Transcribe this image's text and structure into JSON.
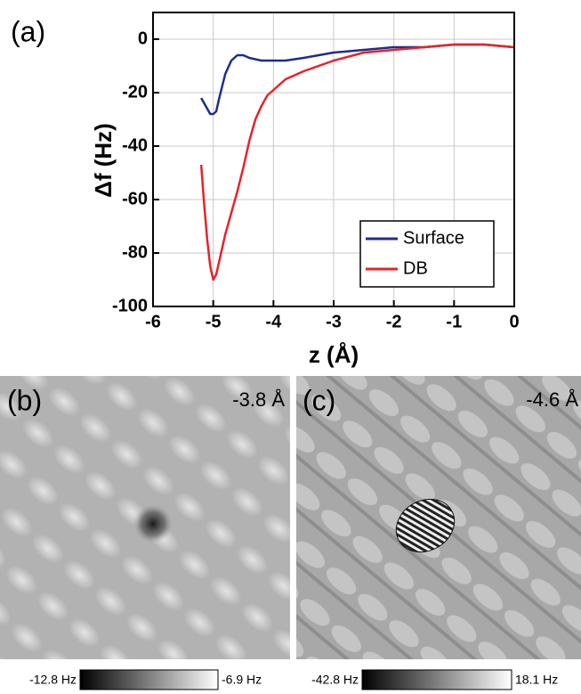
{
  "chart_data": {
    "type": "line",
    "panel_label": "(a)",
    "x_label": "z (Å)",
    "y_label": "Δf (Hz)",
    "xlim": [
      -6,
      0
    ],
    "xticks": [
      -6,
      -5,
      -4,
      -3,
      -2,
      -1,
      0
    ],
    "ylim": [
      -100,
      10
    ],
    "yticks": [
      -100,
      -80,
      -60,
      -40,
      -20,
      0
    ],
    "grid": true,
    "legend": "lower right",
    "series": [
      {
        "name": "Surface",
        "color": "#1f2d8c",
        "x": [
          -5.2,
          -5.15,
          -5.1,
          -5.05,
          -5.0,
          -4.95,
          -4.9,
          -4.8,
          -4.7,
          -4.6,
          -4.5,
          -4.4,
          -4.2,
          -4.0,
          -3.8,
          -3.5,
          -3.0,
          -2.5,
          -2.0,
          -1.5,
          -1.0,
          -0.5,
          0
        ],
        "values": [
          -22,
          -24,
          -26,
          -28,
          -28,
          -27,
          -22,
          -13,
          -8,
          -6,
          -6,
          -7,
          -8,
          -8,
          -8,
          -7,
          -5,
          -4,
          -3,
          -3,
          -2,
          -2,
          -3
        ]
      },
      {
        "name": "DB",
        "color": "#e8222a",
        "x": [
          -5.2,
          -5.15,
          -5.1,
          -5.05,
          -5.0,
          -4.95,
          -4.9,
          -4.8,
          -4.7,
          -4.6,
          -4.5,
          -4.4,
          -4.3,
          -4.2,
          -4.1,
          -4.0,
          -3.9,
          -3.8,
          -3.5,
          -3.0,
          -2.5,
          -2.0,
          -1.5,
          -1.0,
          -0.5,
          0
        ],
        "values": [
          -47,
          -62,
          -75,
          -85,
          -90,
          -88,
          -83,
          -73,
          -65,
          -57,
          -48,
          -38,
          -30,
          -25,
          -21,
          -19,
          -17,
          -15,
          -12,
          -8,
          -5,
          -4,
          -3,
          -2,
          -2,
          -3
        ]
      }
    ]
  },
  "images": [
    {
      "label": "(b)",
      "height": "-3.8 Å",
      "colorbar_min": "-12.8 Hz",
      "colorbar_max": "-6.9 Hz"
    },
    {
      "label": "(c)",
      "height": "-4.6 Å",
      "colorbar_min": "-42.8 Hz",
      "colorbar_max": "18.1 Hz"
    }
  ]
}
